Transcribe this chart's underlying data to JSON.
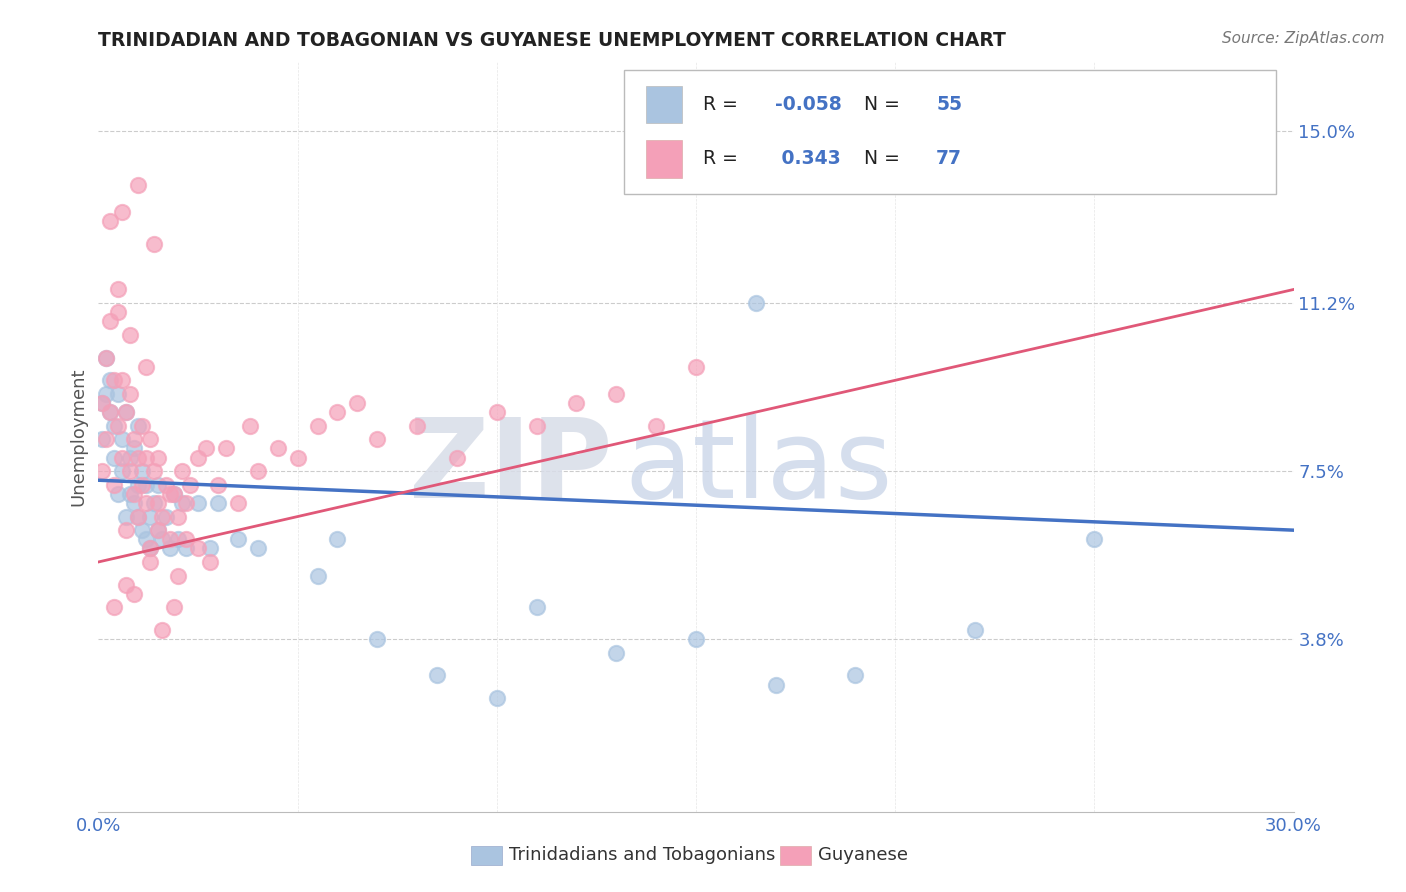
{
  "title": "TRINIDADIAN AND TOBAGONIAN VS GUYANESE UNEMPLOYMENT CORRELATION CHART",
  "source_text": "Source: ZipAtlas.com",
  "ylabel": "Unemployment",
  "legend_label_blue": "Trinidadians and Tobagonians",
  "legend_label_pink": "Guyanese",
  "R_blue": -0.058,
  "N_blue": 55,
  "R_pink": 0.343,
  "N_pink": 77,
  "xlim": [
    0.0,
    0.3
  ],
  "ylim": [
    0.0,
    0.165
  ],
  "yticks": [
    0.038,
    0.075,
    0.112,
    0.15
  ],
  "ytick_labels": [
    "3.8%",
    "7.5%",
    "11.2%",
    "15.0%"
  ],
  "xticks": [
    0.0,
    0.05,
    0.1,
    0.15,
    0.2,
    0.25,
    0.3
  ],
  "xtick_labels": [
    "0.0%",
    "",
    "",
    "",
    "",
    "",
    "30.0%"
  ],
  "color_blue": "#aac4e0",
  "color_pink": "#f4a0b8",
  "trend_color_blue": "#4472c4",
  "trend_color_pink": "#e05878",
  "background_color": "#ffffff",
  "grid_color": "#cccccc",
  "axis_label_color": "#4472c4",
  "blue_points_x": [
    0.001,
    0.001,
    0.002,
    0.002,
    0.003,
    0.003,
    0.004,
    0.004,
    0.005,
    0.005,
    0.006,
    0.006,
    0.007,
    0.007,
    0.008,
    0.008,
    0.009,
    0.009,
    0.01,
    0.01,
    0.01,
    0.011,
    0.011,
    0.012,
    0.012,
    0.013,
    0.013,
    0.014,
    0.015,
    0.015,
    0.016,
    0.017,
    0.018,
    0.019,
    0.02,
    0.021,
    0.022,
    0.025,
    0.028,
    0.03,
    0.035,
    0.04,
    0.055,
    0.06,
    0.07,
    0.085,
    0.1,
    0.11,
    0.13,
    0.15,
    0.17,
    0.19,
    0.22,
    0.25,
    0.165
  ],
  "blue_points_y": [
    0.09,
    0.082,
    0.092,
    0.1,
    0.088,
    0.095,
    0.085,
    0.078,
    0.092,
    0.07,
    0.082,
    0.075,
    0.088,
    0.065,
    0.07,
    0.078,
    0.08,
    0.068,
    0.072,
    0.065,
    0.085,
    0.062,
    0.075,
    0.06,
    0.072,
    0.065,
    0.058,
    0.068,
    0.062,
    0.072,
    0.06,
    0.065,
    0.058,
    0.07,
    0.06,
    0.068,
    0.058,
    0.068,
    0.058,
    0.068,
    0.06,
    0.058,
    0.052,
    0.06,
    0.038,
    0.03,
    0.025,
    0.045,
    0.035,
    0.038,
    0.028,
    0.03,
    0.04,
    0.06,
    0.112
  ],
  "pink_points_x": [
    0.001,
    0.001,
    0.002,
    0.002,
    0.003,
    0.003,
    0.004,
    0.004,
    0.005,
    0.005,
    0.006,
    0.006,
    0.007,
    0.007,
    0.008,
    0.008,
    0.009,
    0.009,
    0.01,
    0.01,
    0.011,
    0.011,
    0.012,
    0.012,
    0.013,
    0.013,
    0.014,
    0.015,
    0.015,
    0.016,
    0.017,
    0.018,
    0.019,
    0.02,
    0.021,
    0.022,
    0.023,
    0.025,
    0.027,
    0.03,
    0.032,
    0.035,
    0.038,
    0.04,
    0.045,
    0.05,
    0.055,
    0.06,
    0.065,
    0.07,
    0.08,
    0.09,
    0.1,
    0.11,
    0.12,
    0.13,
    0.14,
    0.015,
    0.018,
    0.022,
    0.008,
    0.005,
    0.003,
    0.006,
    0.01,
    0.012,
    0.025,
    0.02,
    0.007,
    0.004,
    0.009,
    0.013,
    0.016,
    0.019,
    0.014,
    0.028,
    0.15
  ],
  "pink_points_y": [
    0.075,
    0.09,
    0.082,
    0.1,
    0.088,
    0.108,
    0.095,
    0.072,
    0.085,
    0.11,
    0.078,
    0.095,
    0.088,
    0.062,
    0.075,
    0.092,
    0.082,
    0.07,
    0.078,
    0.065,
    0.085,
    0.072,
    0.068,
    0.078,
    0.058,
    0.082,
    0.075,
    0.068,
    0.078,
    0.065,
    0.072,
    0.06,
    0.07,
    0.065,
    0.075,
    0.068,
    0.072,
    0.078,
    0.08,
    0.072,
    0.08,
    0.068,
    0.085,
    0.075,
    0.08,
    0.078,
    0.085,
    0.088,
    0.09,
    0.082,
    0.085,
    0.078,
    0.088,
    0.085,
    0.09,
    0.092,
    0.085,
    0.062,
    0.07,
    0.06,
    0.105,
    0.115,
    0.13,
    0.132,
    0.138,
    0.098,
    0.058,
    0.052,
    0.05,
    0.045,
    0.048,
    0.055,
    0.04,
    0.045,
    0.125,
    0.055,
    0.098
  ],
  "blue_trend_x": [
    0.0,
    0.3
  ],
  "blue_trend_y": [
    0.073,
    0.062
  ],
  "pink_trend_x": [
    0.0,
    0.3
  ],
  "pink_trend_y": [
    0.055,
    0.115
  ]
}
